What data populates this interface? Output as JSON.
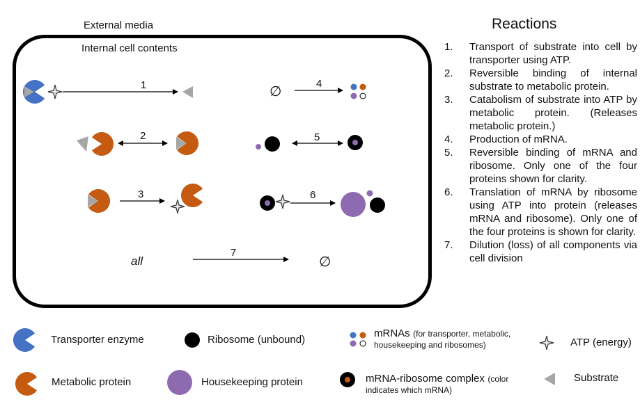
{
  "labels": {
    "external": "External media",
    "internal": "Internal cell contents",
    "all": "all",
    "empty_set": "∅"
  },
  "reactions": {
    "title": "Reactions",
    "items": [
      {
        "num": "1.",
        "text": "Transport of substrate into cell by transporter using ATP."
      },
      {
        "num": "2.",
        "text": "Reversible binding of internal substrate to metabolic protein."
      },
      {
        "num": "3.",
        "text": "Catabolism of substrate into ATP by metabolic protein. (Releases metabolic protein.)"
      },
      {
        "num": "4.",
        "text": "Production of mRNA."
      },
      {
        "num": "5.",
        "text": "Reversible binding of mRNA and ribosome. Only one of the four proteins shown for clarity."
      },
      {
        "num": "6.",
        "text": "Translation of mRNA by ribosome using ATP into protein (releases mRNA and ribosome). Only one of the four proteins is shown for clarity."
      },
      {
        "num": "7.",
        "text": "Dilution (loss) of all components via cell division"
      }
    ]
  },
  "arrow_numbers": [
    "1",
    "2",
    "3",
    "4",
    "5",
    "6",
    "7"
  ],
  "legend": {
    "transporter": "Transporter enzyme",
    "ribosome": "Ribosome (unbound)",
    "mrnas_main": "mRNAs",
    "mrnas_note_1": "(for transporter, metabolic,",
    "mrnas_note_2": "housekeeping and ribosomes)",
    "atp": "ATP (energy)",
    "metabolic": "Metabolic protein",
    "housekeeping": "Housekeeping protein",
    "complex_main": "mRNA-ribosome complex",
    "complex_note_1": "(color",
    "complex_note_2": "indicates which mRNA)",
    "substrate": "Substrate"
  },
  "colors": {
    "transporter": "#4472c4",
    "metabolic": "#c55a11",
    "substrate": "#a6a6a6",
    "housekeeping": "#8e6bb0",
    "ribosome": "#000000",
    "mrna_purple": "#8e6bb0"
  }
}
